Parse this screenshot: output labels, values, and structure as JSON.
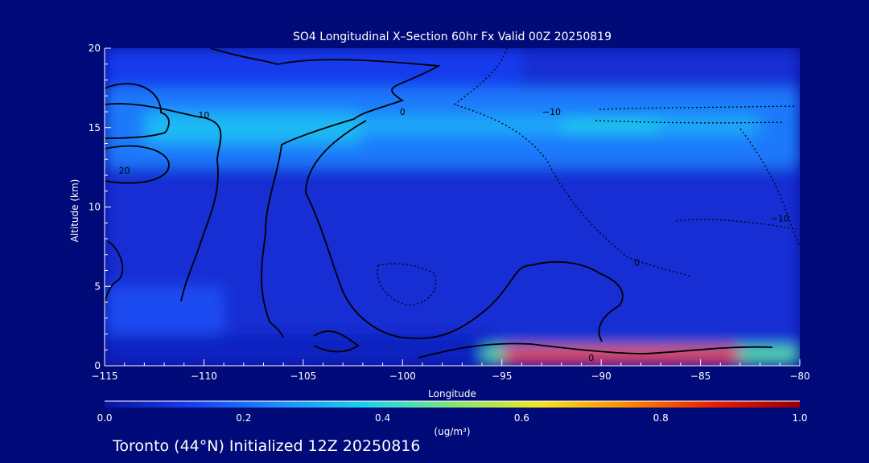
{
  "chart_data": {
    "type": "heatmap",
    "title": "SO4 Longitudinal X–Section 60hr  Fx Valid 00Z 20250819",
    "xlabel": "Longitude",
    "ylabel": "Altitude (km)",
    "xlim": [
      -115,
      -80
    ],
    "ylim": [
      0,
      20
    ],
    "x_ticks": [
      -115,
      -110,
      -105,
      -100,
      -95,
      -90,
      -85,
      -80
    ],
    "x_tick_labels": [
      "−115",
      "−110",
      "−105",
      "−100",
      "−95",
      "−90",
      "−85",
      "−80"
    ],
    "y_ticks": [
      0,
      5,
      10,
      15,
      20
    ],
    "y_tick_labels": [
      "0",
      "5",
      "10",
      "15",
      "20"
    ],
    "grid": false,
    "colorbar": {
      "label": "(ug/m³)",
      "range": [
        0.0,
        1.0
      ],
      "ticks": [
        0.0,
        0.2,
        0.4,
        0.6,
        0.8,
        1.0
      ],
      "tick_labels": [
        "0.0",
        "0.2",
        "0.4",
        "0.6",
        "0.8",
        "1.0"
      ],
      "colors": [
        "#0a14a0",
        "#1a3cf0",
        "#1c8cff",
        "#1ad2ee",
        "#7ee676",
        "#f4e61a",
        "#ff8a00",
        "#e81e00",
        "#960000"
      ]
    },
    "field_regions": [
      {
        "lon": [
          -115,
          -80
        ],
        "alt": [
          0,
          20
        ],
        "value": 0.08
      },
      {
        "lon": [
          -115,
          -94
        ],
        "alt": [
          16,
          20
        ],
        "value": 0.12
      },
      {
        "lon": [
          -115,
          -80
        ],
        "alt": [
          12.5,
          17.5
        ],
        "value": 0.22
      },
      {
        "lon": [
          -113,
          -102
        ],
        "alt": [
          14,
          16
        ],
        "value": 0.33
      },
      {
        "lon": [
          -102,
          -82
        ],
        "alt": [
          14.5,
          15.8
        ],
        "value": 0.3
      },
      {
        "lon": [
          -92,
          -87
        ],
        "alt": [
          14.8,
          15.4
        ],
        "value": 0.38
      },
      {
        "lon": [
          -115,
          -109
        ],
        "alt": [
          1.5,
          5
        ],
        "value": 0.15
      },
      {
        "lon": [
          -115,
          -95
        ],
        "alt": [
          0,
          2
        ],
        "value": 0.05
      },
      {
        "lon": [
          -96,
          -80
        ],
        "alt": [
          0.2,
          1.2
        ],
        "value": 0.45
      },
      {
        "lon": [
          -95,
          -83
        ],
        "alt": [
          0.2,
          1.1
        ],
        "value": 0.85
      }
    ],
    "contour_labels": [
      {
        "text": "10",
        "lon": -110,
        "alt": 15.6
      },
      {
        "text": "20",
        "lon": -114,
        "alt": 12.1
      },
      {
        "text": "0",
        "lon": -100,
        "alt": 15.8
      },
      {
        "text": "−10",
        "lon": -92.5,
        "alt": 15.8
      },
      {
        "text": "0",
        "lon": -88.2,
        "alt": 6.3
      },
      {
        "text": "−10",
        "lon": -81,
        "alt": 9.1
      },
      {
        "text": "0",
        "lon": -90.5,
        "alt": 0.3
      }
    ]
  },
  "footer_text": "Toronto (44°N) Initialized 12Z 20250816"
}
